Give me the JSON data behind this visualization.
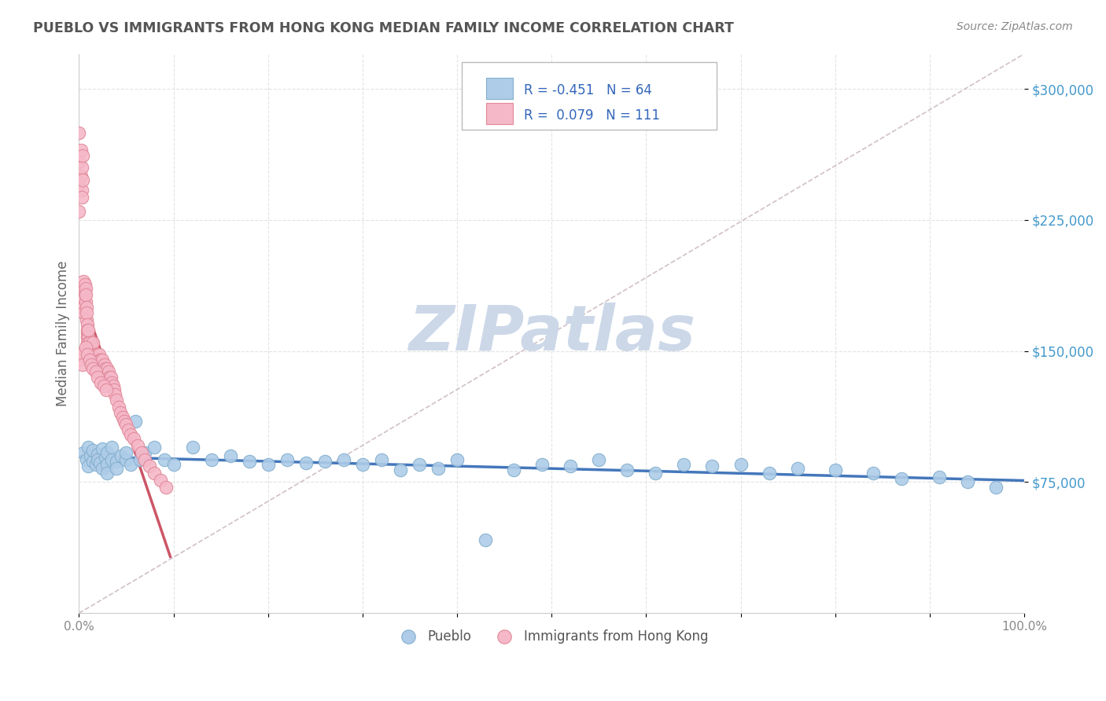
{
  "title": "PUEBLO VS IMMIGRANTS FROM HONG KONG MEDIAN FAMILY INCOME CORRELATION CHART",
  "source": "Source: ZipAtlas.com",
  "ylabel": "Median Family Income",
  "xlim": [
    0,
    1.0
  ],
  "ylim": [
    0,
    320000
  ],
  "xticks": [
    0.0,
    0.1,
    0.2,
    0.3,
    0.4,
    0.5,
    0.6,
    0.7,
    0.8,
    0.9,
    1.0
  ],
  "yticks": [
    75000,
    150000,
    225000,
    300000
  ],
  "ytick_labels": [
    "$75,000",
    "$150,000",
    "$225,000",
    "$300,000"
  ],
  "xtick_labels": [
    "0.0%",
    "",
    "",
    "",
    "",
    "",
    "",
    "",
    "",
    "",
    "100.0%"
  ],
  "background_color": "#ffffff",
  "grid_color": "#dddddd",
  "pueblo_color": "#aecce8",
  "pueblo_edge_color": "#82aece",
  "hk_color": "#f5b8c8",
  "hk_edge_color": "#e08898",
  "pueblo_R": -0.451,
  "pueblo_N": 64,
  "hk_R": 0.079,
  "hk_N": 111,
  "pueblo_line_color": "#4477bb",
  "hk_line_color": "#cc5566",
  "diagonal_color": "#d0c0c8",
  "title_color": "#555555",
  "source_color": "#888888",
  "axis_label_color": "#666666",
  "tick_label_color": "#4499cc",
  "watermark_color": "#ccd8e8",
  "pueblo_x": [
    0.005,
    0.008,
    0.01,
    0.01,
    0.012,
    0.015,
    0.015,
    0.018,
    0.02,
    0.02,
    0.022,
    0.025,
    0.025,
    0.028,
    0.03,
    0.03,
    0.03,
    0.035,
    0.035,
    0.04,
    0.04,
    0.045,
    0.05,
    0.05,
    0.055,
    0.06,
    0.065,
    0.07,
    0.08,
    0.09,
    0.1,
    0.12,
    0.14,
    0.16,
    0.18,
    0.2,
    0.22,
    0.24,
    0.26,
    0.28,
    0.3,
    0.32,
    0.34,
    0.36,
    0.38,
    0.4,
    0.43,
    0.46,
    0.49,
    0.52,
    0.55,
    0.58,
    0.61,
    0.64,
    0.67,
    0.7,
    0.73,
    0.76,
    0.8,
    0.84,
    0.87,
    0.91,
    0.94,
    0.97
  ],
  "pueblo_y": [
    92000,
    88000,
    95000,
    84000,
    90000,
    87000,
    93000,
    85000,
    91000,
    88000,
    86000,
    94000,
    83000,
    89000,
    92000,
    85000,
    80000,
    88000,
    95000,
    87000,
    83000,
    90000,
    88000,
    92000,
    85000,
    110000,
    88000,
    92000,
    95000,
    88000,
    85000,
    95000,
    88000,
    90000,
    87000,
    85000,
    88000,
    86000,
    87000,
    88000,
    85000,
    88000,
    82000,
    85000,
    83000,
    88000,
    42000,
    82000,
    85000,
    84000,
    88000,
    82000,
    80000,
    85000,
    84000,
    85000,
    80000,
    83000,
    82000,
    80000,
    77000,
    78000,
    75000,
    72000
  ],
  "hk_x": [
    0.0,
    0.0,
    0.0,
    0.0,
    0.002,
    0.002,
    0.003,
    0.003,
    0.003,
    0.004,
    0.004,
    0.005,
    0.005,
    0.005,
    0.005,
    0.005,
    0.006,
    0.006,
    0.007,
    0.007,
    0.007,
    0.008,
    0.008,
    0.008,
    0.009,
    0.009,
    0.009,
    0.009,
    0.009,
    0.01,
    0.01,
    0.01,
    0.01,
    0.01,
    0.01,
    0.011,
    0.011,
    0.012,
    0.012,
    0.013,
    0.013,
    0.014,
    0.014,
    0.015,
    0.015,
    0.015,
    0.016,
    0.016,
    0.017,
    0.018,
    0.018,
    0.018,
    0.019,
    0.019,
    0.02,
    0.02,
    0.021,
    0.021,
    0.022,
    0.022,
    0.022,
    0.023,
    0.023,
    0.024,
    0.025,
    0.025,
    0.026,
    0.026,
    0.027,
    0.028,
    0.028,
    0.029,
    0.03,
    0.03,
    0.031,
    0.032,
    0.033,
    0.034,
    0.035,
    0.036,
    0.037,
    0.038,
    0.04,
    0.042,
    0.044,
    0.046,
    0.048,
    0.05,
    0.052,
    0.055,
    0.058,
    0.062,
    0.066,
    0.07,
    0.075,
    0.08,
    0.086,
    0.092,
    0.0,
    0.002,
    0.004,
    0.007,
    0.009,
    0.011,
    0.013,
    0.015,
    0.018,
    0.02,
    0.023,
    0.026,
    0.029
  ],
  "hk_y": [
    275000,
    258000,
    245000,
    230000,
    265000,
    250000,
    242000,
    255000,
    238000,
    262000,
    248000,
    190000,
    185000,
    180000,
    175000,
    172000,
    188000,
    183000,
    186000,
    178000,
    182000,
    175000,
    168000,
    172000,
    165000,
    160000,
    155000,
    162000,
    158000,
    152000,
    148000,
    158000,
    162000,
    155000,
    145000,
    150000,
    155000,
    148000,
    152000,
    145000,
    150000,
    148000,
    145000,
    142000,
    150000,
    155000,
    148000,
    145000,
    142000,
    148000,
    145000,
    142000,
    148000,
    145000,
    142000,
    145000,
    142000,
    148000,
    145000,
    142000,
    138000,
    140000,
    145000,
    138000,
    142000,
    145000,
    140000,
    138000,
    142000,
    138000,
    140000,
    138000,
    135000,
    140000,
    138000,
    135000,
    132000,
    135000,
    132000,
    130000,
    128000,
    125000,
    122000,
    118000,
    115000,
    112000,
    110000,
    108000,
    105000,
    102000,
    100000,
    96000,
    92000,
    88000,
    84000,
    80000,
    76000,
    72000,
    145000,
    148000,
    142000,
    152000,
    148000,
    145000,
    142000,
    140000,
    138000,
    135000,
    132000,
    130000,
    128000
  ]
}
